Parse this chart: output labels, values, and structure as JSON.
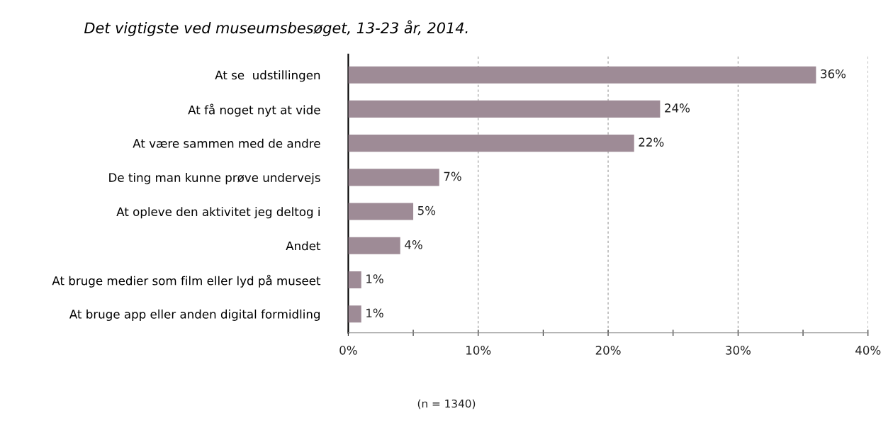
{
  "chart_data": {
    "type": "bar",
    "orientation": "horizontal",
    "title": "Det vigtigste ved museumsbesøget, 13-23 år, 2014.",
    "categories": [
      "At se  udstillingen",
      "At få noget nyt at vide",
      "At være sammen med de andre",
      "De ting man kunne prøve undervejs",
      "At opleve den aktivitet jeg deltog i",
      "Andet",
      "At bruge medier som film eller lyd på museet",
      "At bruge app eller anden digital formidling"
    ],
    "series": [
      {
        "color": "#9e8b96",
        "values": [
          36,
          24,
          22,
          7,
          5,
          4,
          1,
          1
        ],
        "value_labels": [
          "36%",
          "24%",
          "22%",
          "7%",
          "5%",
          "4%",
          "1%",
          "1%"
        ]
      }
    ],
    "xlim": [
      0,
      40
    ],
    "xticks": [
      {
        "value": 0,
        "label": "0%"
      },
      {
        "value": 5,
        "label": null
      },
      {
        "value": 10,
        "label": "10%"
      },
      {
        "value": 15,
        "label": null
      },
      {
        "value": 20,
        "label": "20%"
      },
      {
        "value": 25,
        "label": null
      },
      {
        "value": 30,
        "label": "30%"
      },
      {
        "value": 35,
        "label": null
      },
      {
        "value": 40,
        "label": "40%"
      }
    ],
    "grid": "x",
    "annotations": [
      "(n = 1340)"
    ]
  }
}
